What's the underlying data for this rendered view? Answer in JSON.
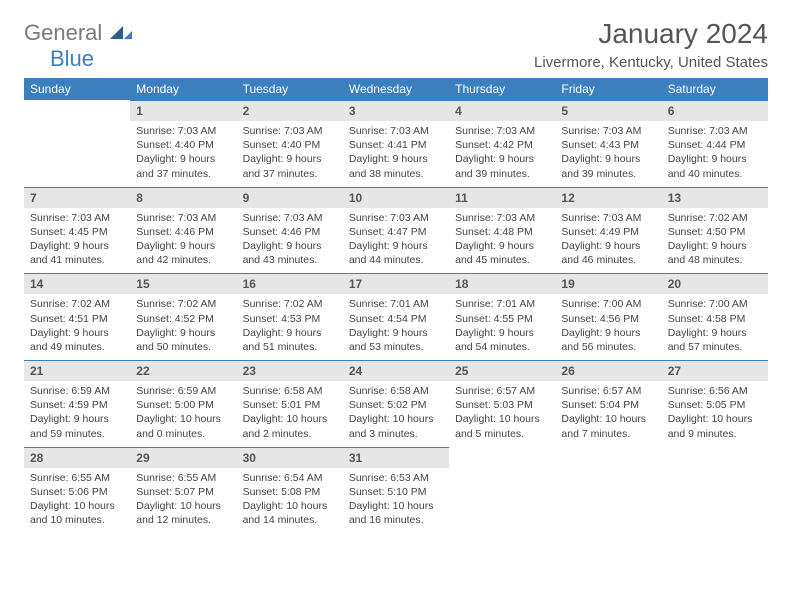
{
  "logo": {
    "word1": "General",
    "word2": "Blue"
  },
  "title": "January 2024",
  "location": "Livermore, Kentucky, United States",
  "header_bg": "#3b7fbf",
  "daynum_bg": "#e6e6e6",
  "daynames": [
    "Sunday",
    "Monday",
    "Tuesday",
    "Wednesday",
    "Thursday",
    "Friday",
    "Saturday"
  ],
  "weeks": [
    [
      {
        "n": "",
        "lines": []
      },
      {
        "n": "1",
        "lines": [
          "Sunrise: 7:03 AM",
          "Sunset: 4:40 PM",
          "Daylight: 9 hours and 37 minutes."
        ]
      },
      {
        "n": "2",
        "lines": [
          "Sunrise: 7:03 AM",
          "Sunset: 4:40 PM",
          "Daylight: 9 hours and 37 minutes."
        ]
      },
      {
        "n": "3",
        "lines": [
          "Sunrise: 7:03 AM",
          "Sunset: 4:41 PM",
          "Daylight: 9 hours and 38 minutes."
        ]
      },
      {
        "n": "4",
        "lines": [
          "Sunrise: 7:03 AM",
          "Sunset: 4:42 PM",
          "Daylight: 9 hours and 39 minutes."
        ]
      },
      {
        "n": "5",
        "lines": [
          "Sunrise: 7:03 AM",
          "Sunset: 4:43 PM",
          "Daylight: 9 hours and 39 minutes."
        ]
      },
      {
        "n": "6",
        "lines": [
          "Sunrise: 7:03 AM",
          "Sunset: 4:44 PM",
          "Daylight: 9 hours and 40 minutes."
        ]
      }
    ],
    [
      {
        "n": "7",
        "lines": [
          "Sunrise: 7:03 AM",
          "Sunset: 4:45 PM",
          "Daylight: 9 hours and 41 minutes."
        ]
      },
      {
        "n": "8",
        "lines": [
          "Sunrise: 7:03 AM",
          "Sunset: 4:46 PM",
          "Daylight: 9 hours and 42 minutes."
        ]
      },
      {
        "n": "9",
        "lines": [
          "Sunrise: 7:03 AM",
          "Sunset: 4:46 PM",
          "Daylight: 9 hours and 43 minutes."
        ]
      },
      {
        "n": "10",
        "lines": [
          "Sunrise: 7:03 AM",
          "Sunset: 4:47 PM",
          "Daylight: 9 hours and 44 minutes."
        ]
      },
      {
        "n": "11",
        "lines": [
          "Sunrise: 7:03 AM",
          "Sunset: 4:48 PM",
          "Daylight: 9 hours and 45 minutes."
        ]
      },
      {
        "n": "12",
        "lines": [
          "Sunrise: 7:03 AM",
          "Sunset: 4:49 PM",
          "Daylight: 9 hours and 46 minutes."
        ]
      },
      {
        "n": "13",
        "lines": [
          "Sunrise: 7:02 AM",
          "Sunset: 4:50 PM",
          "Daylight: 9 hours and 48 minutes."
        ]
      }
    ],
    [
      {
        "n": "14",
        "lines": [
          "Sunrise: 7:02 AM",
          "Sunset: 4:51 PM",
          "Daylight: 9 hours and 49 minutes."
        ]
      },
      {
        "n": "15",
        "lines": [
          "Sunrise: 7:02 AM",
          "Sunset: 4:52 PM",
          "Daylight: 9 hours and 50 minutes."
        ]
      },
      {
        "n": "16",
        "lines": [
          "Sunrise: 7:02 AM",
          "Sunset: 4:53 PM",
          "Daylight: 9 hours and 51 minutes."
        ]
      },
      {
        "n": "17",
        "lines": [
          "Sunrise: 7:01 AM",
          "Sunset: 4:54 PM",
          "Daylight: 9 hours and 53 minutes."
        ]
      },
      {
        "n": "18",
        "lines": [
          "Sunrise: 7:01 AM",
          "Sunset: 4:55 PM",
          "Daylight: 9 hours and 54 minutes."
        ]
      },
      {
        "n": "19",
        "lines": [
          "Sunrise: 7:00 AM",
          "Sunset: 4:56 PM",
          "Daylight: 9 hours and 56 minutes."
        ]
      },
      {
        "n": "20",
        "lines": [
          "Sunrise: 7:00 AM",
          "Sunset: 4:58 PM",
          "Daylight: 9 hours and 57 minutes."
        ]
      }
    ],
    [
      {
        "n": "21",
        "lines": [
          "Sunrise: 6:59 AM",
          "Sunset: 4:59 PM",
          "Daylight: 9 hours and 59 minutes."
        ]
      },
      {
        "n": "22",
        "lines": [
          "Sunrise: 6:59 AM",
          "Sunset: 5:00 PM",
          "Daylight: 10 hours and 0 minutes."
        ]
      },
      {
        "n": "23",
        "lines": [
          "Sunrise: 6:58 AM",
          "Sunset: 5:01 PM",
          "Daylight: 10 hours and 2 minutes."
        ]
      },
      {
        "n": "24",
        "lines": [
          "Sunrise: 6:58 AM",
          "Sunset: 5:02 PM",
          "Daylight: 10 hours and 3 minutes."
        ]
      },
      {
        "n": "25",
        "lines": [
          "Sunrise: 6:57 AM",
          "Sunset: 5:03 PM",
          "Daylight: 10 hours and 5 minutes."
        ]
      },
      {
        "n": "26",
        "lines": [
          "Sunrise: 6:57 AM",
          "Sunset: 5:04 PM",
          "Daylight: 10 hours and 7 minutes."
        ]
      },
      {
        "n": "27",
        "lines": [
          "Sunrise: 6:56 AM",
          "Sunset: 5:05 PM",
          "Daylight: 10 hours and 9 minutes."
        ]
      }
    ],
    [
      {
        "n": "28",
        "lines": [
          "Sunrise: 6:55 AM",
          "Sunset: 5:06 PM",
          "Daylight: 10 hours and 10 minutes."
        ]
      },
      {
        "n": "29",
        "lines": [
          "Sunrise: 6:55 AM",
          "Sunset: 5:07 PM",
          "Daylight: 10 hours and 12 minutes."
        ]
      },
      {
        "n": "30",
        "lines": [
          "Sunrise: 6:54 AM",
          "Sunset: 5:08 PM",
          "Daylight: 10 hours and 14 minutes."
        ]
      },
      {
        "n": "31",
        "lines": [
          "Sunrise: 6:53 AM",
          "Sunset: 5:10 PM",
          "Daylight: 10 hours and 16 minutes."
        ]
      },
      {
        "n": "",
        "lines": []
      },
      {
        "n": "",
        "lines": []
      },
      {
        "n": "",
        "lines": []
      }
    ]
  ]
}
